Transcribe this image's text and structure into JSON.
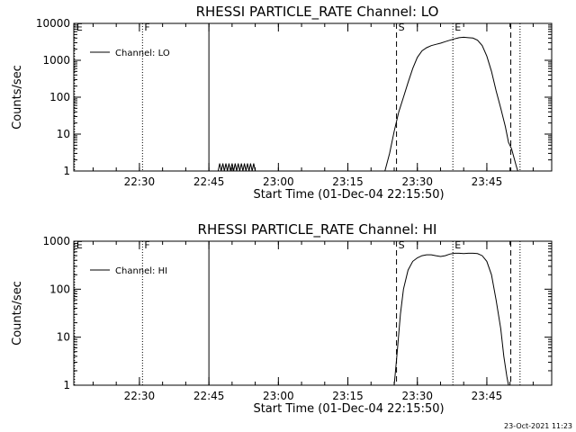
{
  "footer_timestamp": "23-Oct-2021 11:23",
  "chart_data": [
    {
      "type": "line",
      "title": "RHESSI PARTICLE_RATE Channel: LO",
      "xlabel": "Start Time (01-Dec-04 22:15:50)",
      "ylabel": "Counts/sec",
      "y_scale": "log",
      "ylim": [
        1,
        10000
      ],
      "yticks": [
        {
          "v": 1,
          "label": "1"
        },
        {
          "v": 10,
          "label": "10"
        },
        {
          "v": 100,
          "label": "100"
        },
        {
          "v": 1000,
          "label": "1000"
        },
        {
          "v": 10000,
          "label": "10000"
        }
      ],
      "xlim": [
        "22:15:50",
        "23:59:00"
      ],
      "xticks": [
        "22:30",
        "22:45",
        "23:00",
        "23:15",
        "23:30",
        "23:45"
      ],
      "legend": {
        "position": "top-left",
        "entries": [
          "Channel: LO"
        ]
      },
      "markers": [
        {
          "label": "E",
          "time": "22:16:00",
          "style": "dotted"
        },
        {
          "label": "F",
          "time": "22:30:40",
          "style": "dotted"
        },
        {
          "label": "",
          "time": "22:45:00",
          "style": "solid"
        },
        {
          "label": "S",
          "time": "23:25:30",
          "style": "dashed"
        },
        {
          "label": "E",
          "time": "23:37:40",
          "style": "dotted"
        },
        {
          "label": "",
          "time": "23:50:10",
          "style": "dashed"
        },
        {
          "label": "",
          "time": "23:52:10",
          "style": "dotted"
        }
      ],
      "series": [
        {
          "name": "Channel: LO",
          "points": [
            [
              "22:47:00",
              1
            ],
            [
              "22:47:20",
              1.6
            ],
            [
              "22:47:40",
              1
            ],
            [
              "22:48:00",
              1.6
            ],
            [
              "22:48:20",
              1
            ],
            [
              "22:48:40",
              1.6
            ],
            [
              "22:49:00",
              1
            ],
            [
              "22:49:20",
              1.6
            ],
            [
              "22:49:40",
              1
            ],
            [
              "22:50:00",
              1.6
            ],
            [
              "22:50:20",
              1
            ],
            [
              "22:50:40",
              1.6
            ],
            [
              "22:51:00",
              1
            ],
            [
              "22:51:20",
              1.6
            ],
            [
              "22:51:40",
              1
            ],
            [
              "22:52:00",
              1.6
            ],
            [
              "22:52:20",
              1
            ],
            [
              "22:52:40",
              1.6
            ],
            [
              "22:53:00",
              1
            ],
            [
              "22:53:20",
              1.6
            ],
            [
              "22:53:40",
              1
            ],
            [
              "22:54:00",
              1.6
            ],
            [
              "22:54:20",
              1
            ],
            [
              "22:54:40",
              1.6
            ],
            [
              "22:55:00",
              1
            ]
          ]
        },
        {
          "name": "Channel: LO",
          "points": [
            [
              "23:23:00",
              1
            ],
            [
              "23:24:00",
              3
            ],
            [
              "23:25:00",
              12
            ],
            [
              "23:26:00",
              40
            ],
            [
              "23:27:00",
              100
            ],
            [
              "23:28:00",
              250
            ],
            [
              "23:29:00",
              600
            ],
            [
              "23:30:00",
              1200
            ],
            [
              "23:31:00",
              1800
            ],
            [
              "23:32:00",
              2200
            ],
            [
              "23:33:00",
              2500
            ],
            [
              "23:34:00",
              2700
            ],
            [
              "23:35:00",
              2900
            ],
            [
              "23:36:00",
              3200
            ],
            [
              "23:37:00",
              3500
            ],
            [
              "23:38:00",
              3800
            ],
            [
              "23:39:00",
              4100
            ],
            [
              "23:40:00",
              4200
            ],
            [
              "23:41:00",
              4100
            ],
            [
              "23:42:00",
              4000
            ],
            [
              "23:43:00",
              3500
            ],
            [
              "23:44:00",
              2500
            ],
            [
              "23:45:00",
              1300
            ],
            [
              "23:46:00",
              500
            ],
            [
              "23:47:00",
              150
            ],
            [
              "23:48:00",
              50
            ],
            [
              "23:49:00",
              16
            ],
            [
              "23:49:40",
              6
            ],
            [
              "23:50:20",
              4
            ],
            [
              "23:51:00",
              2
            ],
            [
              "23:51:20",
              1.4
            ],
            [
              "23:51:40",
              1
            ]
          ]
        }
      ]
    },
    {
      "type": "line",
      "title": "RHESSI PARTICLE_RATE Channel: HI",
      "xlabel": "Start Time (01-Dec-04 22:15:50)",
      "ylabel": "Counts/sec",
      "y_scale": "log",
      "ylim": [
        1,
        1000
      ],
      "yticks": [
        {
          "v": 1,
          "label": "1"
        },
        {
          "v": 10,
          "label": "10"
        },
        {
          "v": 100,
          "label": "100"
        },
        {
          "v": 1000,
          "label": "1000"
        }
      ],
      "xlim": [
        "22:15:50",
        "23:59:00"
      ],
      "xticks": [
        "22:30",
        "22:45",
        "23:00",
        "23:15",
        "23:30",
        "23:45"
      ],
      "legend": {
        "position": "top-left",
        "entries": [
          "Channel: HI"
        ]
      },
      "markers": [
        {
          "label": "E",
          "time": "22:16:00",
          "style": "dotted"
        },
        {
          "label": "F",
          "time": "22:30:40",
          "style": "dotted"
        },
        {
          "label": "",
          "time": "22:45:00",
          "style": "solid"
        },
        {
          "label": "S",
          "time": "23:25:30",
          "style": "dashed"
        },
        {
          "label": "E",
          "time": "23:37:40",
          "style": "dotted"
        },
        {
          "label": "",
          "time": "23:50:10",
          "style": "dashed"
        },
        {
          "label": "",
          "time": "23:52:10",
          "style": "dotted"
        }
      ],
      "series": [
        {
          "name": "Channel: HI",
          "points": [
            [
              "23:25:00",
              1
            ],
            [
              "23:25:40",
              5
            ],
            [
              "23:26:20",
              30
            ],
            [
              "23:27:00",
              100
            ],
            [
              "23:28:00",
              250
            ],
            [
              "23:29:00",
              380
            ],
            [
              "23:30:00",
              450
            ],
            [
              "23:31:00",
              500
            ],
            [
              "23:32:00",
              520
            ],
            [
              "23:33:00",
              520
            ],
            [
              "23:34:00",
              500
            ],
            [
              "23:35:00",
              480
            ],
            [
              "23:36:00",
              500
            ],
            [
              "23:37:00",
              540
            ],
            [
              "23:38:00",
              560
            ],
            [
              "23:39:00",
              560
            ],
            [
              "23:40:00",
              550
            ],
            [
              "23:41:00",
              560
            ],
            [
              "23:42:00",
              560
            ],
            [
              "23:43:00",
              550
            ],
            [
              "23:44:00",
              500
            ],
            [
              "23:45:00",
              380
            ],
            [
              "23:46:00",
              200
            ],
            [
              "23:47:00",
              60
            ],
            [
              "23:48:00",
              15
            ],
            [
              "23:48:40",
              4
            ],
            [
              "23:49:20",
              1.5
            ],
            [
              "23:49:40",
              1
            ]
          ]
        }
      ]
    }
  ]
}
